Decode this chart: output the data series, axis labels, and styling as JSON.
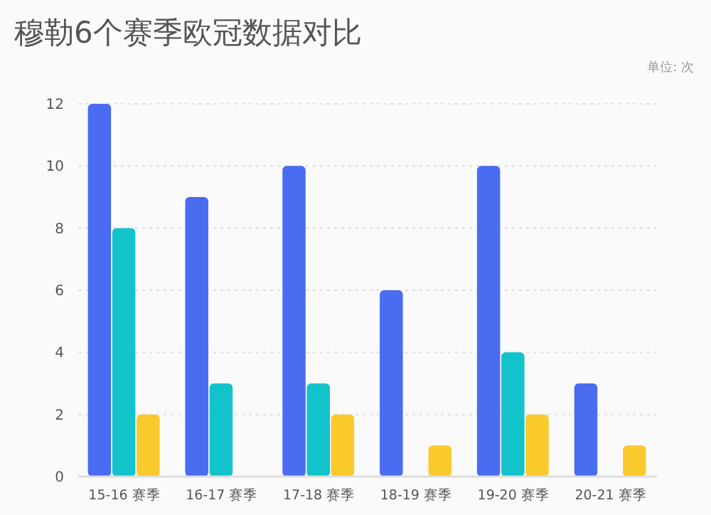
{
  "chart_data": {
    "type": "bar",
    "title": "穆勒6个赛季欧冠数据对比",
    "subtitle": "单位: 次",
    "categories": [
      "15-16 赛季",
      "16-17 赛季",
      "17-18 赛季",
      "18-19 赛季",
      "19-20 赛季",
      "20-21 赛季"
    ],
    "series": [
      {
        "color": "#4a6cf0",
        "values": [
          12,
          9,
          10,
          6,
          10,
          3
        ]
      },
      {
        "color": "#12c3cc",
        "values": [
          8,
          3,
          3,
          null,
          4,
          null
        ]
      },
      {
        "color": "#fac92c",
        "values": [
          2,
          null,
          2,
          1,
          2,
          1
        ]
      }
    ],
    "ylim": [
      0,
      12
    ],
    "yticks": [
      0,
      2,
      4,
      6,
      8,
      10,
      12
    ],
    "grid": "y"
  }
}
